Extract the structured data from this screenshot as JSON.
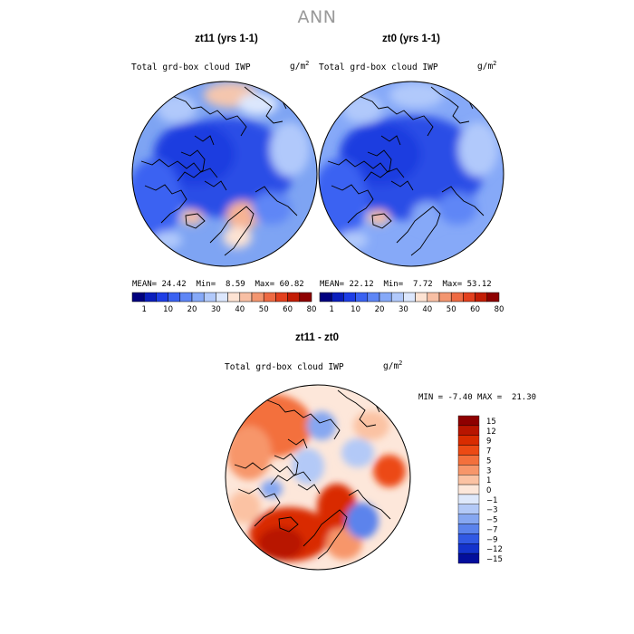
{
  "page_title": "ANN",
  "panels": [
    {
      "title": "zt11 (yrs 1-1)",
      "variable": "Total grd-box cloud IWP",
      "unit_base": "g/m",
      "unit_exp": "2",
      "mean_label": "MEAN=",
      "mean": "24.42",
      "min_label": "Min=",
      "min": "8.59",
      "max_label": "Max=",
      "max": "60.82"
    },
    {
      "title": "zt0 (yrs 1-1)",
      "variable": "Total grd-box cloud IWP",
      "unit_base": "g/m",
      "unit_exp": "2",
      "mean_label": "MEAN=",
      "mean": "22.12",
      "min_label": "Min=",
      "min": "7.72",
      "max_label": "Max=",
      "max": "53.12"
    }
  ],
  "colorbar_abs": {
    "ticks": [
      "1",
      "10",
      "20",
      "30",
      "40",
      "50",
      "60",
      "80"
    ],
    "colors": [
      "#00007f",
      "#0a1ebd",
      "#1e3ee6",
      "#3a62f2",
      "#5e86f6",
      "#86a9f8",
      "#b1c9fb",
      "#dce7fd",
      "#fde3d3",
      "#f8bfa4",
      "#f39670",
      "#ee6a43",
      "#e3401e",
      "#c31d05",
      "#8e0000"
    ]
  },
  "difference": {
    "title": "zt11 - zt0",
    "variable": "Total grd-box cloud IWP",
    "unit_base": "g/m",
    "unit_exp": "2",
    "min_label": "MIN =",
    "min": "-7.40",
    "max_label": "MAX =",
    "max": "21.30",
    "levels": [
      "15",
      "12",
      "9",
      "7",
      "5",
      "3",
      "1",
      "0",
      "−1",
      "−3",
      "−5",
      "−7",
      "−9",
      "−12",
      "−15"
    ],
    "colors": [
      "#8e0000",
      "#b81500",
      "#d92c00",
      "#ec4a14",
      "#f3703c",
      "#f7966a",
      "#fbc2a3",
      "#fde7da",
      "#dee8fb",
      "#b3c9f7",
      "#86a7f1",
      "#5b83ec",
      "#3159e4",
      "#1433cc",
      "#030e9c"
    ]
  }
}
